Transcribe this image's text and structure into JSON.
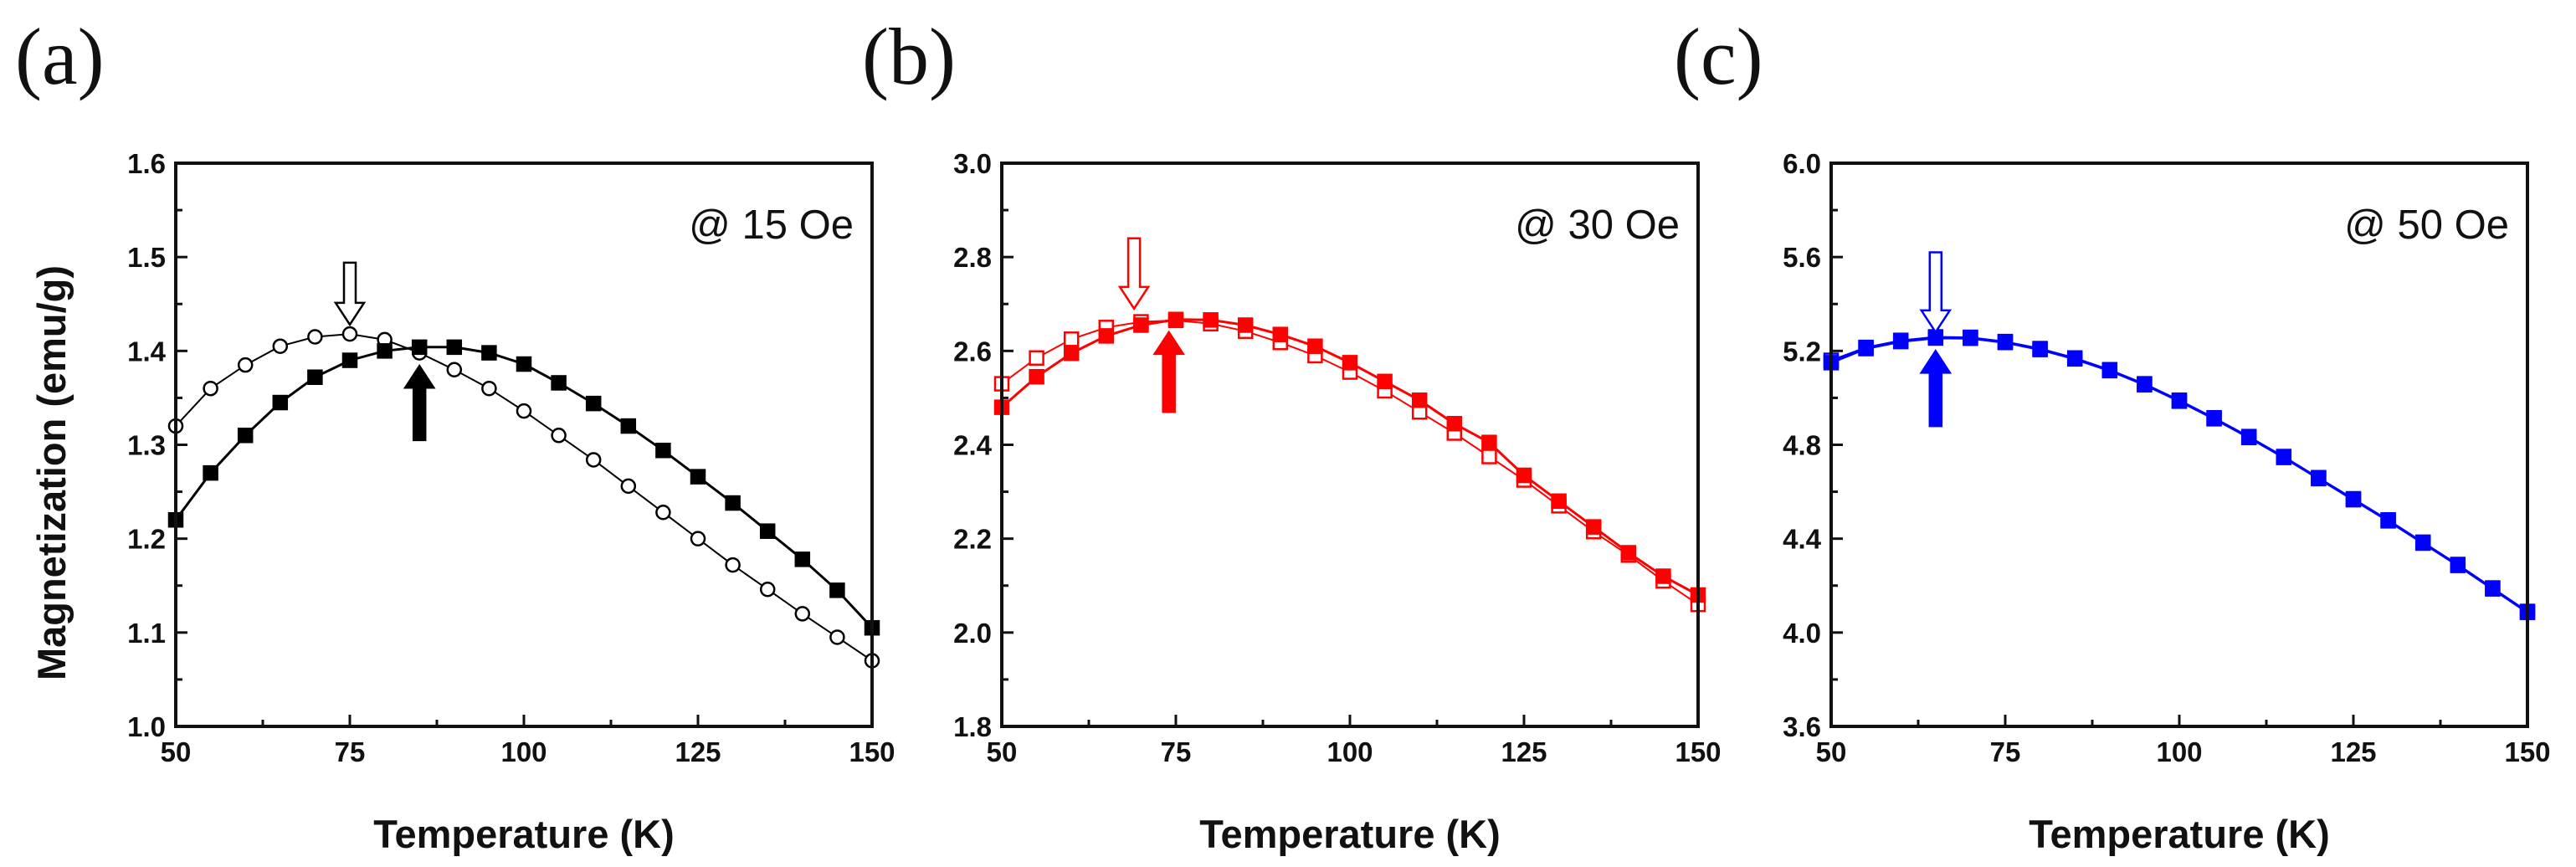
{
  "figure": {
    "ylabel": "Magnetization (emu/g)",
    "xlabel": "Temperature (K)"
  },
  "chart_data": [
    {
      "type": "scatter",
      "panel_label": "(a)",
      "annotation": "@ 15 Oe",
      "xlabel": "Temperature (K)",
      "ylabel": "Magnetization (emu/g)",
      "xlim": [
        50,
        150
      ],
      "ylim": [
        1.0,
        1.6
      ],
      "x_ticks": [
        50,
        75,
        100,
        125,
        150
      ],
      "y_ticks": [
        1.0,
        1.1,
        1.2,
        1.3,
        1.4,
        1.5,
        1.6
      ],
      "y_tick_labels": [
        "1.0",
        "1.1",
        "1.2",
        "1.3",
        "1.4",
        "1.5",
        "1.6"
      ],
      "color": "#000000",
      "series": [
        {
          "name": "open",
          "marker": "open-circle",
          "x": [
            50,
            55,
            60,
            65,
            70,
            75,
            80,
            85,
            90,
            95,
            100,
            105,
            110,
            115,
            120,
            125,
            130,
            135,
            140,
            145,
            150
          ],
          "y": [
            1.32,
            1.36,
            1.385,
            1.405,
            1.415,
            1.418,
            1.412,
            1.398,
            1.38,
            1.36,
            1.336,
            1.31,
            1.284,
            1.256,
            1.228,
            1.2,
            1.172,
            1.146,
            1.12,
            1.095,
            1.07
          ]
        },
        {
          "name": "filled",
          "marker": "filled-square",
          "x": [
            50,
            55,
            60,
            65,
            70,
            75,
            80,
            85,
            90,
            95,
            100,
            105,
            110,
            115,
            120,
            125,
            130,
            135,
            140,
            145,
            150
          ],
          "y": [
            1.22,
            1.27,
            1.31,
            1.345,
            1.372,
            1.39,
            1.4,
            1.404,
            1.404,
            1.398,
            1.386,
            1.366,
            1.344,
            1.32,
            1.294,
            1.266,
            1.238,
            1.208,
            1.178,
            1.145,
            1.105
          ]
        }
      ],
      "arrows": [
        {
          "x": 75,
          "y_tail": 1.494,
          "y_head": 1.428,
          "style": "open",
          "direction": "down"
        },
        {
          "x": 85,
          "y_tail": 1.305,
          "y_head": 1.384,
          "style": "filled",
          "direction": "up"
        }
      ]
    },
    {
      "type": "scatter",
      "panel_label": "(b)",
      "annotation": "@ 30 Oe",
      "xlabel": "Temperature (K)",
      "ylabel": "",
      "xlim": [
        50,
        150
      ],
      "ylim": [
        1.8,
        3.0
      ],
      "x_ticks": [
        50,
        75,
        100,
        125,
        150
      ],
      "y_ticks": [
        1.8,
        2.0,
        2.2,
        2.4,
        2.6,
        2.8,
        3.0
      ],
      "y_tick_labels": [
        "1.8",
        "2.0",
        "2.2",
        "2.4",
        "2.6",
        "2.8",
        "3.0"
      ],
      "color": "#ff0000",
      "series": [
        {
          "name": "open",
          "marker": "open-square",
          "x": [
            50,
            55,
            60,
            65,
            70,
            75,
            80,
            85,
            90,
            95,
            100,
            105,
            110,
            115,
            120,
            125,
            130,
            135,
            140,
            145,
            150
          ],
          "y": [
            2.53,
            2.585,
            2.625,
            2.65,
            2.662,
            2.665,
            2.658,
            2.642,
            2.618,
            2.59,
            2.555,
            2.515,
            2.47,
            2.425,
            2.375,
            2.325,
            2.27,
            2.215,
            2.165,
            2.11,
            2.06
          ]
        },
        {
          "name": "filled",
          "marker": "filled-square",
          "x": [
            50,
            55,
            60,
            65,
            70,
            75,
            80,
            85,
            90,
            95,
            100,
            105,
            110,
            115,
            120,
            125,
            130,
            135,
            140,
            145,
            150
          ],
          "y": [
            2.48,
            2.545,
            2.595,
            2.632,
            2.655,
            2.667,
            2.666,
            2.655,
            2.635,
            2.61,
            2.575,
            2.535,
            2.495,
            2.445,
            2.405,
            2.335,
            2.28,
            2.225,
            2.17,
            2.12,
            2.08
          ]
        }
      ],
      "arrows": [
        {
          "x": 69,
          "y_tail": 2.84,
          "y_head": 2.69,
          "style": "open",
          "direction": "down"
        },
        {
          "x": 74,
          "y_tail": 2.47,
          "y_head": 2.64,
          "style": "filled",
          "direction": "up"
        }
      ]
    },
    {
      "type": "scatter",
      "panel_label": "(c)",
      "annotation": "@ 50 Oe",
      "xlabel": "Temperature (K)",
      "ylabel": "",
      "xlim": [
        50,
        150
      ],
      "ylim": [
        3.6,
        6.0
      ],
      "x_ticks": [
        50,
        75,
        100,
        125,
        150
      ],
      "y_ticks": [
        3.6,
        4.0,
        4.4,
        4.8,
        5.2,
        5.6,
        6.0
      ],
      "y_tick_labels": [
        "3.6",
        "4.0",
        "4.4",
        "4.8",
        "5.2",
        "5.6",
        "6.0"
      ],
      "color": "#0000ff",
      "series": [
        {
          "name": "open",
          "marker": "open-square",
          "x": [
            50,
            55,
            60,
            65,
            70,
            75,
            80,
            85,
            90,
            95,
            100,
            105,
            110,
            115,
            120,
            125,
            130,
            135,
            140,
            145,
            150
          ],
          "y": [
            5.16,
            5.215,
            5.245,
            5.26,
            5.258,
            5.24,
            5.21,
            5.17,
            5.12,
            5.06,
            4.99,
            4.915,
            4.835,
            4.75,
            4.66,
            4.57,
            4.48,
            4.385,
            4.29,
            4.19,
            4.09
          ]
        },
        {
          "name": "filled",
          "marker": "filled-square",
          "x": [
            50,
            55,
            60,
            65,
            70,
            75,
            80,
            85,
            90,
            95,
            100,
            105,
            110,
            115,
            120,
            125,
            130,
            135,
            140,
            145,
            150
          ],
          "y": [
            5.15,
            5.21,
            5.24,
            5.255,
            5.254,
            5.236,
            5.206,
            5.166,
            5.116,
            5.056,
            4.986,
            4.911,
            4.831,
            4.746,
            4.656,
            4.566,
            4.476,
            4.381,
            4.286,
            4.186,
            4.086
          ]
        }
      ],
      "arrows": [
        {
          "x": 65,
          "y_tail": 5.62,
          "y_head": 5.28,
          "style": "open",
          "direction": "down"
        },
        {
          "x": 65,
          "y_tail": 4.88,
          "y_head": 5.2,
          "style": "filled",
          "direction": "up"
        }
      ]
    }
  ]
}
